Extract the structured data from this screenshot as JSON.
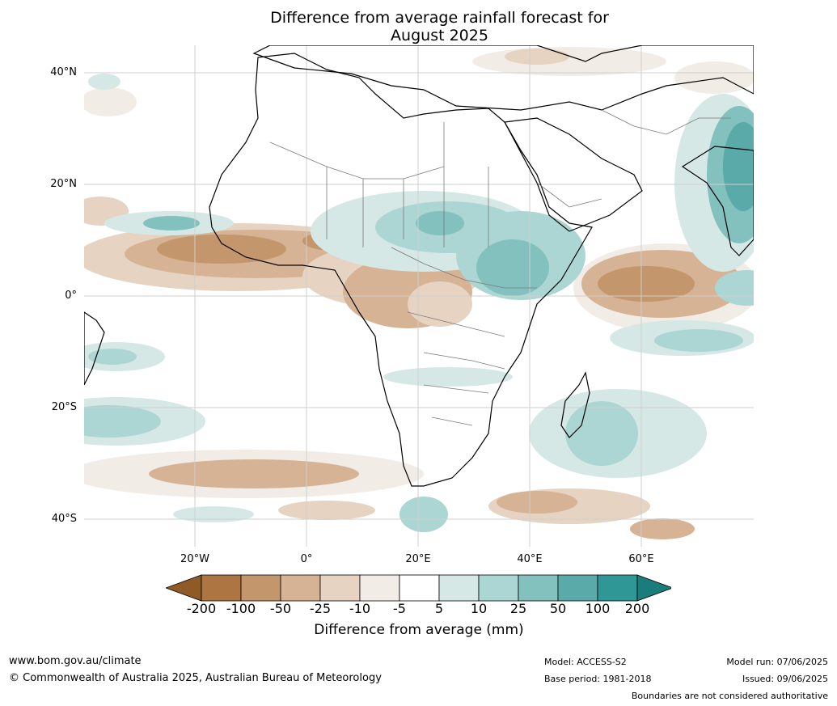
{
  "title_line1": "Difference from average rainfall forecast for",
  "title_line2": "August 2025",
  "latitude_labels": [
    "40°N",
    "20°N",
    "0°",
    "20°S",
    "40°S"
  ],
  "longitude_labels": [
    "20°W",
    "0°",
    "20°E",
    "40°E",
    "60°E"
  ],
  "colorbar": {
    "label": "Difference from average (mm)",
    "ticks": [
      "-200",
      "-100",
      "-50",
      "-25",
      "-10",
      "-5",
      "5",
      "10",
      "25",
      "50",
      "100",
      "200"
    ],
    "colors": [
      "#8f5a26",
      "#ad7541",
      "#c4966b",
      "#d6b394",
      "#e6d3c2",
      "#f2ece6",
      "#ffffff",
      "#d6e8e6",
      "#acd6d3",
      "#83c1bf",
      "#59aaa8",
      "#2f9896",
      "#1b7d7b"
    ]
  },
  "footer": {
    "website": "www.bom.gov.au/climate",
    "copyright": "© Commonwealth of Australia 2025, Australian Bureau of Meteorology",
    "model": "Model: ACCESS-S2",
    "base_period": "Base period: 1981-2018",
    "model_run": "Model run: 07/06/2025",
    "issued": "Issued: 09/06/2025",
    "disclaimer": "Boundaries are not considered authoritative"
  }
}
